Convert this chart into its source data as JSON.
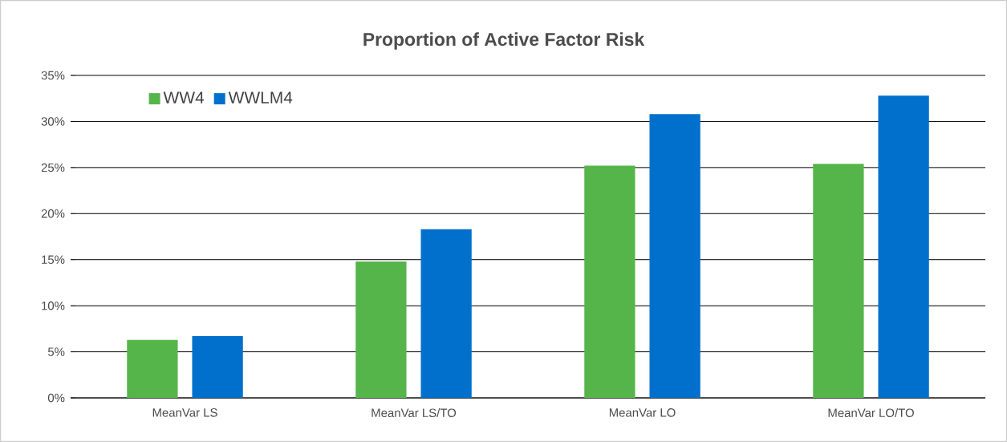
{
  "chart_data": {
    "type": "bar",
    "title": "Proportion of Active Factor Risk",
    "categories": [
      "MeanVar LS",
      "MeanVar LS/TO",
      "MeanVar LO",
      "MeanVar LO/TO"
    ],
    "series": [
      {
        "name": "WW4",
        "color": "#55b54a",
        "values": [
          6.3,
          14.8,
          25.2,
          25.4
        ]
      },
      {
        "name": "WWLM4",
        "color": "#0070cc",
        "values": [
          6.7,
          18.3,
          30.8,
          32.8
        ]
      }
    ],
    "ylim": [
      0,
      35
    ],
    "yticks": [
      {
        "value": 0,
        "label": "0%"
      },
      {
        "value": 5,
        "label": "5%"
      },
      {
        "value": 10,
        "label": "10%"
      },
      {
        "value": 15,
        "label": "15%"
      },
      {
        "value": 20,
        "label": "20%"
      },
      {
        "value": 25,
        "label": "25%"
      },
      {
        "value": 30,
        "label": "30%"
      },
      {
        "value": 35,
        "label": "35%"
      }
    ],
    "grid": "y",
    "legend": "top left"
  }
}
